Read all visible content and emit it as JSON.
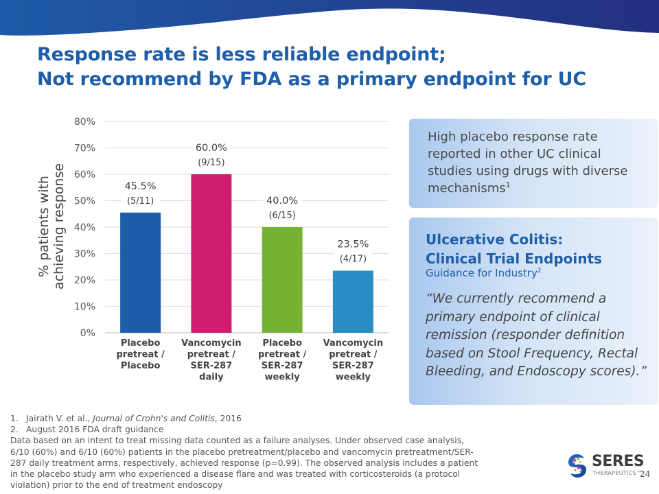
{
  "slide": {
    "title_line1": "Response rate is less reliable endpoint;",
    "title_line2": "Not recommend by FDA as a primary endpoint for UC",
    "page_number": "24",
    "colors": {
      "title": "#1f5ea8",
      "header_wave_left": "#1f5ba8",
      "header_wave_right": "#232f7f"
    }
  },
  "chart_data": {
    "type": "bar",
    "title": "",
    "xlabel": "",
    "ylabel_line1": "% patients with",
    "ylabel_line2": "achieving response",
    "ylim": [
      0,
      80
    ],
    "yticks": [
      0,
      10,
      20,
      30,
      40,
      50,
      60,
      70,
      80
    ],
    "ytick_labels": [
      "0%",
      "10%",
      "20%",
      "30%",
      "40%",
      "50%",
      "60%",
      "70%",
      "80%"
    ],
    "grid": true,
    "legend": "none",
    "categories": [
      [
        "Placebo",
        "pretreat /",
        "Placebo"
      ],
      [
        "Vancomycin",
        "pretreat /",
        "SER-287",
        "daily"
      ],
      [
        "Placebo",
        "pretreat /",
        "SER-287",
        "weekly"
      ],
      [
        "Vancomycin",
        "pretreat /",
        "SER-287",
        "weekly"
      ]
    ],
    "values": [
      45.5,
      60.0,
      40.0,
      23.5
    ],
    "value_labels": [
      "45.5%",
      "60.0%",
      "40.0%",
      "23.5%"
    ],
    "fraction_labels": [
      "(5/11)",
      "(9/15)",
      "(6/15)",
      "(4/17)"
    ],
    "colors": [
      "#1c5ca8",
      "#d01c71",
      "#76b335",
      "#2a8cc4"
    ]
  },
  "callout1": {
    "text": "High placebo response rate reported in other UC clinical studies using drugs with diverse mechanisms",
    "superscript": "1"
  },
  "callout2": {
    "title_line1": "Ulcerative Colitis:",
    "title_line2": "Clinical Trial Endpoints",
    "subtitle": "Guidance for Industry",
    "subtitle_superscript": "2",
    "quote": "“We currently recommend a primary endpoint of clinical remission (responder definition based on Stool Frequency, Rectal Bleeding, and Endoscopy scores).”"
  },
  "footnotes": {
    "items": [
      {
        "num": "1.",
        "author": "Jairath V. et al., ",
        "journal": "Journal of Crohn's and Colitis",
        "year": ", 2016"
      },
      {
        "num": "2.",
        "text": "August 2016 FDA draft guidance"
      }
    ],
    "note_lines": [
      "Data based on an intent to treat missing data counted as a failure analyses. Under observed case analysis,",
      "6/10 (60%) and  6/10 (60%) patients in the placebo pretreatment/placebo and vancomycin pretreatment/SER-",
      "287 daily treatment arms, respectively, achieved response (p=0.99). The observed analysis includes a patient",
      "in the placebo study arm who experienced a disease flare and was treated with corticosteroids (a protocol",
      "violation) prior to the end of treatment endoscopy"
    ]
  },
  "logo": {
    "word": "SERES",
    "sub": "THERAPEUTICS™"
  }
}
